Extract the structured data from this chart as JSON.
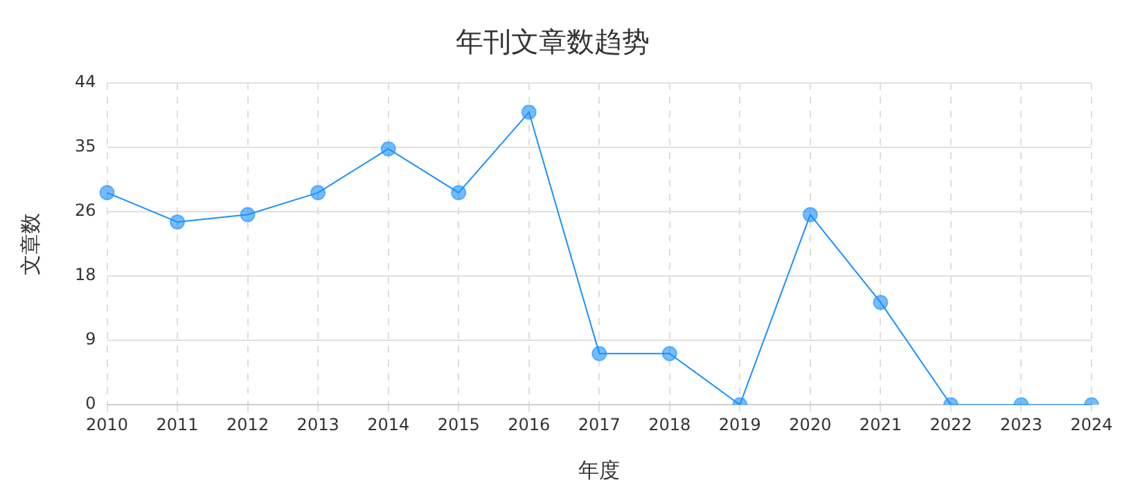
{
  "chart_data": {
    "type": "line",
    "title": "年刊文章数趋势",
    "xlabel": "年度",
    "ylabel": "文章数",
    "categories": [
      "2010",
      "2011",
      "2012",
      "2013",
      "2014",
      "2015",
      "2016",
      "2017",
      "2018",
      "2019",
      "2020",
      "2021",
      "2022",
      "2023",
      "2024"
    ],
    "series": [
      {
        "color": "#1890ff",
        "values": [
          29,
          25,
          26,
          29,
          35,
          29,
          40,
          7,
          7,
          0,
          26,
          14,
          0,
          0,
          0
        ]
      }
    ],
    "ylim": [
      0,
      44
    ],
    "yticks": [
      0,
      {
        "value": 8.8,
        "label": "9"
      },
      {
        "value": 17.6,
        "label": "18"
      },
      {
        "value": 26.4,
        "label": "26"
      },
      {
        "value": 35.2,
        "label": "35"
      },
      44
    ],
    "grid": true,
    "marker": "circle",
    "line_style": "solid",
    "legend": false
  }
}
